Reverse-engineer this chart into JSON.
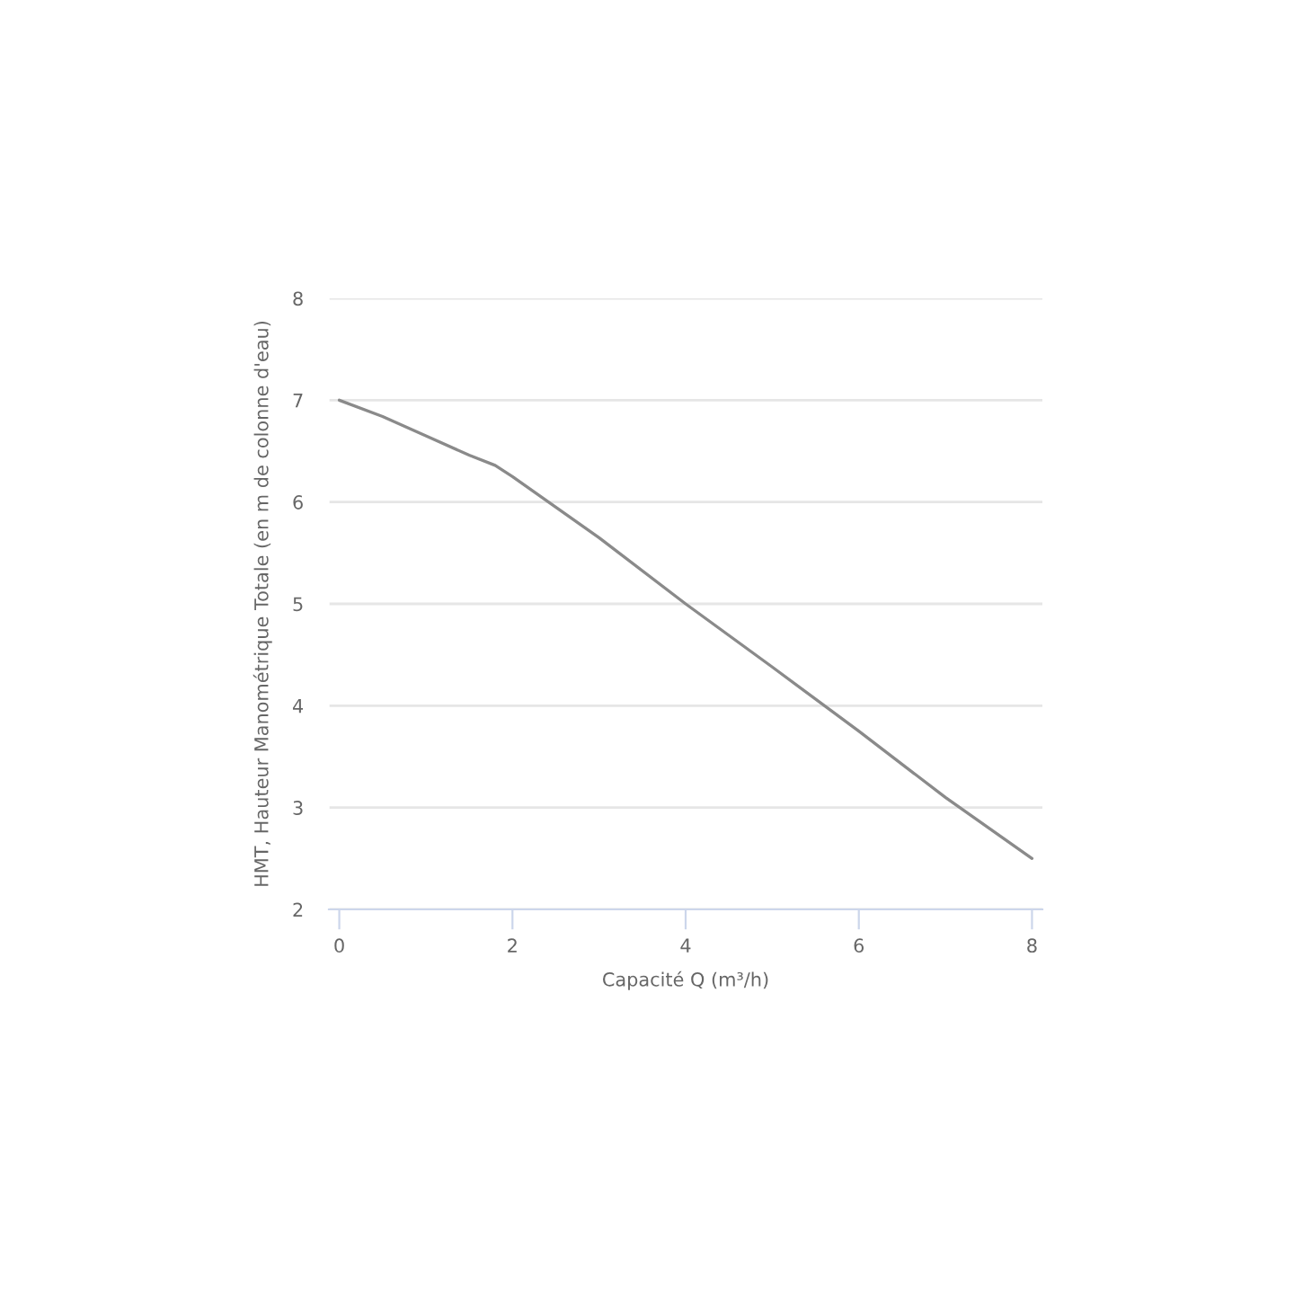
{
  "chart_data": {
    "type": "line",
    "xlabel": "Capacité Q (m³/h)",
    "ylabel": "HMT, Hauteur Manométrique Totale (en m de colonne d'eau)",
    "series": [
      {
        "color": "#8a8a8a",
        "x": [
          0,
          0.5,
          1,
          1.5,
          1.8,
          2,
          2.5,
          3,
          4,
          5,
          6,
          7,
          8
        ],
        "values": [
          7.0,
          6.84,
          6.65,
          6.46,
          6.36,
          6.25,
          5.95,
          5.65,
          5.0,
          4.38,
          3.75,
          3.1,
          2.5
        ]
      }
    ],
    "xlim": [
      -0.12,
      8.12
    ],
    "xticks": [
      0,
      2,
      4,
      6,
      8
    ],
    "ylim": [
      2,
      8
    ],
    "yticks": [
      2,
      3,
      4,
      5,
      6,
      7,
      8
    ],
    "grid": "y",
    "marker": "none",
    "line_style": "solid"
  }
}
